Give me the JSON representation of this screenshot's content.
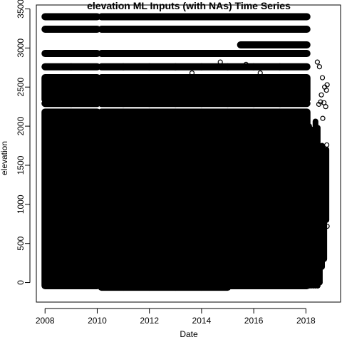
{
  "chart_data": {
    "type": "scatter",
    "title": "elevation ML Inputs (with NAs) Time Series",
    "xlabel": "Date",
    "ylabel": "elevation",
    "xlim": [
      "2007-09-01",
      "2019-05-01"
    ],
    "ylim": [
      -250,
      3550
    ],
    "x_ticks": [
      "2008",
      "2010",
      "2012",
      "2014",
      "2016",
      "2018"
    ],
    "y_ticks": [
      "0",
      "500",
      "1000",
      "1500",
      "2000",
      "2500",
      "3000",
      "3500"
    ],
    "grid": false,
    "legend": "none",
    "marker": "open-circle",
    "color": "#000000",
    "year_blocks": [
      {
        "start": "2008-01-01",
        "end": "2008-12-31",
        "low_bound": -40
      },
      {
        "start": "2009-01-01",
        "end": "2009-12-31",
        "low_bound": -40
      },
      {
        "start": "2010-03-01",
        "end": "2010-12-31",
        "low_bound": -60
      },
      {
        "start": "2011-01-01",
        "end": "2011-12-31",
        "low_bound": -60
      },
      {
        "start": "2012-01-01",
        "end": "2012-12-31",
        "low_bound": -60
      },
      {
        "start": "2013-01-01",
        "end": "2013-12-31",
        "low_bound": -60
      },
      {
        "start": "2014-01-01",
        "end": "2014-12-31",
        "low_bound": -60
      },
      {
        "start": "2015-01-01",
        "end": "2015-12-31",
        "low_bound": -40
      },
      {
        "start": "2016-01-01",
        "end": "2016-12-31",
        "low_bound": -40
      },
      {
        "start": "2017-01-01",
        "end": "2018-01-15",
        "low_bound": -40
      }
    ],
    "bands": [
      {
        "elevation": 3400,
        "start": "2008-01-01",
        "end": "2018-01-15"
      },
      {
        "elevation": 3240,
        "start": "2008-01-01",
        "end": "2018-01-15"
      },
      {
        "elevation": 3040,
        "start": "2015-07-01",
        "end": "2018-01-15"
      },
      {
        "elevation": 2930,
        "start": "2008-01-01",
        "end": "2018-01-15"
      },
      {
        "elevation": 2760,
        "start": "2008-01-01",
        "end": "2018-01-15"
      },
      {
        "elevation": 2290,
        "start": "2008-01-01",
        "end": "2018-01-15"
      }
    ],
    "dense_range": [
      2340,
      2620
    ],
    "scatter_points": [
      {
        "date": "2013-08-20",
        "elevation": 2680
      },
      {
        "date": "2014-09-20",
        "elevation": 2820
      },
      {
        "date": "2015-09-15",
        "elevation": 2790
      },
      {
        "date": "2016-04-01",
        "elevation": 2680
      },
      {
        "date": "2016-11-10",
        "elevation": 2320
      },
      {
        "date": "2017-01-15",
        "elevation": 2330
      },
      {
        "date": "2018-06-10",
        "elevation": 2820
      },
      {
        "date": "2018-07-10",
        "elevation": 2760
      },
      {
        "date": "2018-08-20",
        "elevation": 2620
      },
      {
        "date": "2018-09-20",
        "elevation": 2500
      },
      {
        "date": "2018-10-15",
        "elevation": 2460
      },
      {
        "date": "2018-09-10",
        "elevation": 2300
      },
      {
        "date": "2018-10-05",
        "elevation": 2250
      },
      {
        "date": "2018-08-05",
        "elevation": 2400
      },
      {
        "date": "2018-07-25",
        "elevation": 2310
      },
      {
        "date": "2018-10-25",
        "elevation": 2530
      },
      {
        "date": "2018-07-01",
        "elevation": 2280
      },
      {
        "date": "2018-08-25",
        "elevation": 2100
      },
      {
        "date": "2018-10-20",
        "elevation": 1760
      },
      {
        "date": "2018-10-25",
        "elevation": 720
      }
    ],
    "late_2018_columns": [
      {
        "date": "2018-02-15",
        "low": -40,
        "high": 2000
      },
      {
        "date": "2018-03-15",
        "low": -40,
        "high": 1960
      },
      {
        "date": "2018-04-15",
        "low": -40,
        "high": 1920
      },
      {
        "date": "2018-05-15",
        "low": -40,
        "high": 2060
      },
      {
        "date": "2018-06-15",
        "low": -40,
        "high": 1980
      },
      {
        "date": "2018-07-15",
        "low": 0,
        "high": 1700
      },
      {
        "date": "2018-08-15",
        "low": 200,
        "high": 1750
      },
      {
        "date": "2018-09-15",
        "low": 300,
        "high": 1660
      },
      {
        "date": "2018-10-15",
        "low": 800,
        "high": 1700
      }
    ]
  }
}
